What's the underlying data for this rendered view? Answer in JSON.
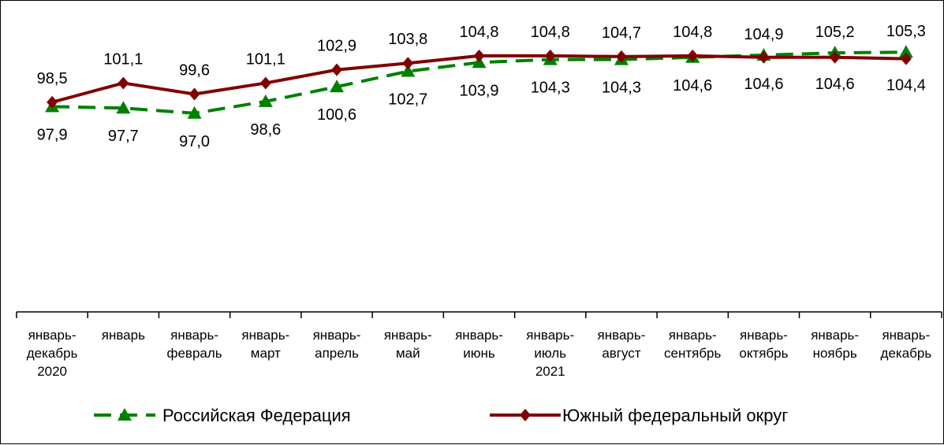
{
  "chart_data": {
    "type": "line",
    "title": "",
    "xlabel": "",
    "ylabel": "",
    "ylim": [
      70,
      108
    ],
    "grid": false,
    "legend_position": "bottom",
    "categories": [
      [
        "январь-",
        "декабрь",
        "2020"
      ],
      [
        "январь"
      ],
      [
        "январь-",
        "февраль"
      ],
      [
        "январь-",
        "март"
      ],
      [
        "январь-",
        "апрель"
      ],
      [
        "январь-",
        "май"
      ],
      [
        "январь-",
        "июнь"
      ],
      [
        "январь-",
        "июль",
        "2021"
      ],
      [
        "январь-",
        "август"
      ],
      [
        "январь-",
        "сентябрь"
      ],
      [
        "январь-",
        "октябрь"
      ],
      [
        "январь-",
        "ноябрь"
      ],
      [
        "январь-",
        "декабрь"
      ]
    ],
    "series": [
      {
        "name": "Российская Федерация",
        "color": "#008000",
        "style": "dashed",
        "marker": "triangle",
        "values": [
          97.9,
          97.7,
          97.0,
          98.6,
          100.6,
          102.7,
          103.9,
          104.3,
          104.3,
          104.6,
          104.9,
          105.2,
          105.3
        ],
        "labels": [
          "97,9",
          "97,7",
          "97,0",
          "98,6",
          "100,6",
          "102,7",
          "103,9",
          "104,3",
          "104,3",
          "104,6",
          "104,9",
          "105,2",
          "105,3"
        ],
        "label_side": [
          "below",
          "below",
          "below",
          "below",
          "below",
          "below",
          "below",
          "below",
          "below",
          "below",
          "above",
          "above",
          "above"
        ]
      },
      {
        "name": "Южный федеральный округ",
        "color": "#800000",
        "style": "solid",
        "marker": "diamond",
        "values": [
          98.5,
          101.1,
          99.6,
          101.1,
          102.9,
          103.8,
          104.8,
          104.8,
          104.7,
          104.8,
          104.6,
          104.6,
          104.4
        ],
        "labels": [
          "98,5",
          "101,1",
          "99,6",
          "101,1",
          "102,9",
          "103,8",
          "104,8",
          "104,8",
          "104,7",
          "104,8",
          "104,6",
          "104,6",
          "104,4"
        ],
        "label_side": [
          "above",
          "above",
          "above",
          "above",
          "above",
          "above",
          "above",
          "above",
          "above",
          "above",
          "below",
          "below",
          "below"
        ]
      }
    ]
  }
}
